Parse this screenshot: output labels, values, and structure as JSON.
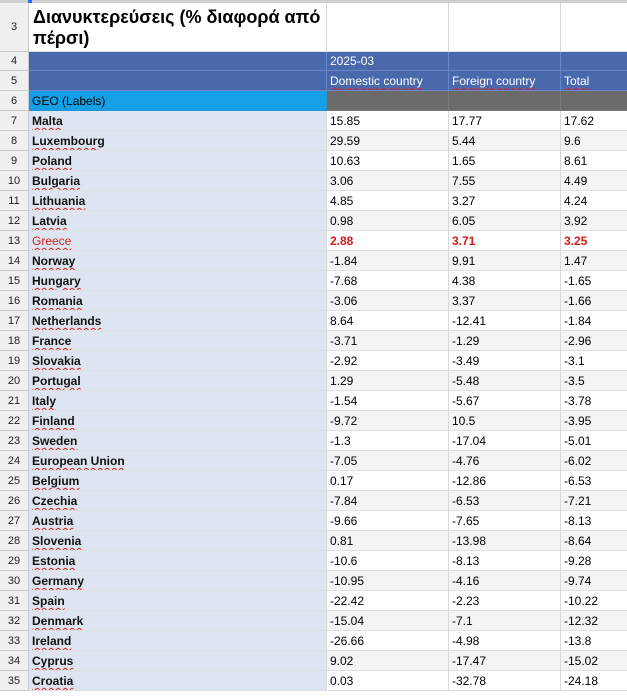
{
  "sheet": {
    "title": "Διανυκτερεύσεις (% διαφορά από πέρσι)",
    "period": "2025-03",
    "columns": [
      "Domestic country",
      "Foreign country",
      "Total"
    ],
    "geo_label": "GEO (Labels)",
    "row_numbers": [
      "3",
      "4",
      "5",
      "6",
      "7",
      "8",
      "9",
      "10",
      "11",
      "12",
      "13",
      "14",
      "15",
      "16",
      "17",
      "18",
      "19",
      "20",
      "21",
      "22",
      "23",
      "24",
      "25",
      "26",
      "27",
      "28",
      "29",
      "30",
      "31",
      "32",
      "33",
      "34",
      "35"
    ],
    "rows": [
      {
        "geo": "Malta",
        "domestic": "15.85",
        "foreign": "17.77",
        "total": "17.62"
      },
      {
        "geo": "Luxembourg",
        "domestic": "29.59",
        "foreign": "5.44",
        "total": "9.6"
      },
      {
        "geo": "Poland",
        "domestic": "10.63",
        "foreign": "1.65",
        "total": "8.61"
      },
      {
        "geo": "Bulgaria",
        "domestic": "3.06",
        "foreign": "7.55",
        "total": "4.49"
      },
      {
        "geo": "Lithuania",
        "domestic": "4.85",
        "foreign": "3.27",
        "total": "4.24"
      },
      {
        "geo": "Latvia",
        "domestic": "0.98",
        "foreign": "6.05",
        "total": "3.92"
      },
      {
        "geo": "Greece",
        "domestic": "2.88",
        "foreign": "3.71",
        "total": "3.25"
      },
      {
        "geo": "Norway",
        "domestic": "-1.84",
        "foreign": "9.91",
        "total": "1.47"
      },
      {
        "geo": "Hungary",
        "domestic": "-7.68",
        "foreign": "4.38",
        "total": "-1.65"
      },
      {
        "geo": "Romania",
        "domestic": "-3.06",
        "foreign": "3.37",
        "total": "-1.66"
      },
      {
        "geo": "Netherlands",
        "domestic": "8.64",
        "foreign": "-12.41",
        "total": "-1.84"
      },
      {
        "geo": "France",
        "domestic": "-3.71",
        "foreign": "-1.29",
        "total": "-2.96"
      },
      {
        "geo": "Slovakia",
        "domestic": "-2.92",
        "foreign": "-3.49",
        "total": "-3.1"
      },
      {
        "geo": "Portugal",
        "domestic": "1.29",
        "foreign": "-5.48",
        "total": "-3.5"
      },
      {
        "geo": "Italy",
        "domestic": "-1.54",
        "foreign": "-5.67",
        "total": "-3.78"
      },
      {
        "geo": "Finland",
        "domestic": "-9.72",
        "foreign": "10.5",
        "total": "-3.95"
      },
      {
        "geo": "Sweden",
        "domestic": "-1.3",
        "foreign": "-17.04",
        "total": "-5.01"
      },
      {
        "geo": "European Union",
        "domestic": "-7.05",
        "foreign": "-4.76",
        "total": "-6.02"
      },
      {
        "geo": "Belgium",
        "domestic": "0.17",
        "foreign": "-12.86",
        "total": "-6.53"
      },
      {
        "geo": "Czechia",
        "domestic": "-7.84",
        "foreign": "-6.53",
        "total": "-7.21"
      },
      {
        "geo": "Austria",
        "domestic": "-9.66",
        "foreign": "-7.65",
        "total": "-8.13"
      },
      {
        "geo": "Slovenia",
        "domestic": "0.81",
        "foreign": "-13.98",
        "total": "-8.64"
      },
      {
        "geo": "Estonia",
        "domestic": "-10.6",
        "foreign": "-8.13",
        "total": "-9.28"
      },
      {
        "geo": "Germany",
        "domestic": "-10.95",
        "foreign": "-4.16",
        "total": "-9.74"
      },
      {
        "geo": "Spain",
        "domestic": "-22.42",
        "foreign": "-2.23",
        "total": "-10.22"
      },
      {
        "geo": "Denmark",
        "domestic": "-15.04",
        "foreign": "-7.1",
        "total": "-12.32"
      },
      {
        "geo": "Ireland",
        "domestic": "-26.66",
        "foreign": "-4.98",
        "total": "-13.8"
      },
      {
        "geo": "Cyprus",
        "domestic": "9.02",
        "foreign": "-17.47",
        "total": "-15.02"
      },
      {
        "geo": "Croatia",
        "domestic": "0.03",
        "foreign": "-32.78",
        "total": "-24.18"
      }
    ],
    "highlight_geo": "Greece",
    "colors": {
      "header_blue": "#4a69ad",
      "header_dark": "#6b6b6b",
      "geo_label_bg": "#15a0e6",
      "label_column_bg": "#dde6f0",
      "highlight_red": "#d41c1c"
    }
  }
}
